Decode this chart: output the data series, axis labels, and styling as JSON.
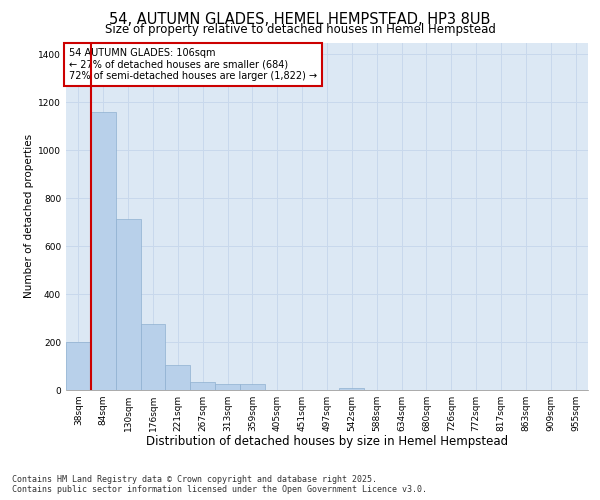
{
  "title": "54, AUTUMN GLADES, HEMEL HEMPSTEAD, HP3 8UB",
  "subtitle": "Size of property relative to detached houses in Hemel Hempstead",
  "xlabel": "Distribution of detached houses by size in Hemel Hempstead",
  "ylabel": "Number of detached properties",
  "categories": [
    "38sqm",
    "84sqm",
    "130sqm",
    "176sqm",
    "221sqm",
    "267sqm",
    "313sqm",
    "359sqm",
    "405sqm",
    "451sqm",
    "497sqm",
    "542sqm",
    "588sqm",
    "634sqm",
    "680sqm",
    "726sqm",
    "772sqm",
    "817sqm",
    "863sqm",
    "909sqm",
    "955sqm"
  ],
  "values": [
    200,
    1160,
    715,
    275,
    105,
    35,
    25,
    25,
    0,
    0,
    0,
    10,
    0,
    0,
    0,
    0,
    0,
    0,
    0,
    0,
    0
  ],
  "bar_color": "#b8d0ea",
  "bar_edge_color": "#8fb0d0",
  "vline_x_index": 1,
  "vline_color": "#cc0000",
  "annotation_text": "54 AUTUMN GLADES: 106sqm\n← 27% of detached houses are smaller (684)\n72% of semi-detached houses are larger (1,822) →",
  "annotation_box_color": "#cc0000",
  "ylim": [
    0,
    1450
  ],
  "yticks": [
    0,
    200,
    400,
    600,
    800,
    1000,
    1200,
    1400
  ],
  "grid_color": "#c8d8ec",
  "background_color": "#dce8f4",
  "footer_text": "Contains HM Land Registry data © Crown copyright and database right 2025.\nContains public sector information licensed under the Open Government Licence v3.0.",
  "title_fontsize": 10.5,
  "subtitle_fontsize": 8.5,
  "xlabel_fontsize": 8.5,
  "ylabel_fontsize": 7.5,
  "tick_fontsize": 6.5,
  "annotation_fontsize": 7,
  "footer_fontsize": 6
}
